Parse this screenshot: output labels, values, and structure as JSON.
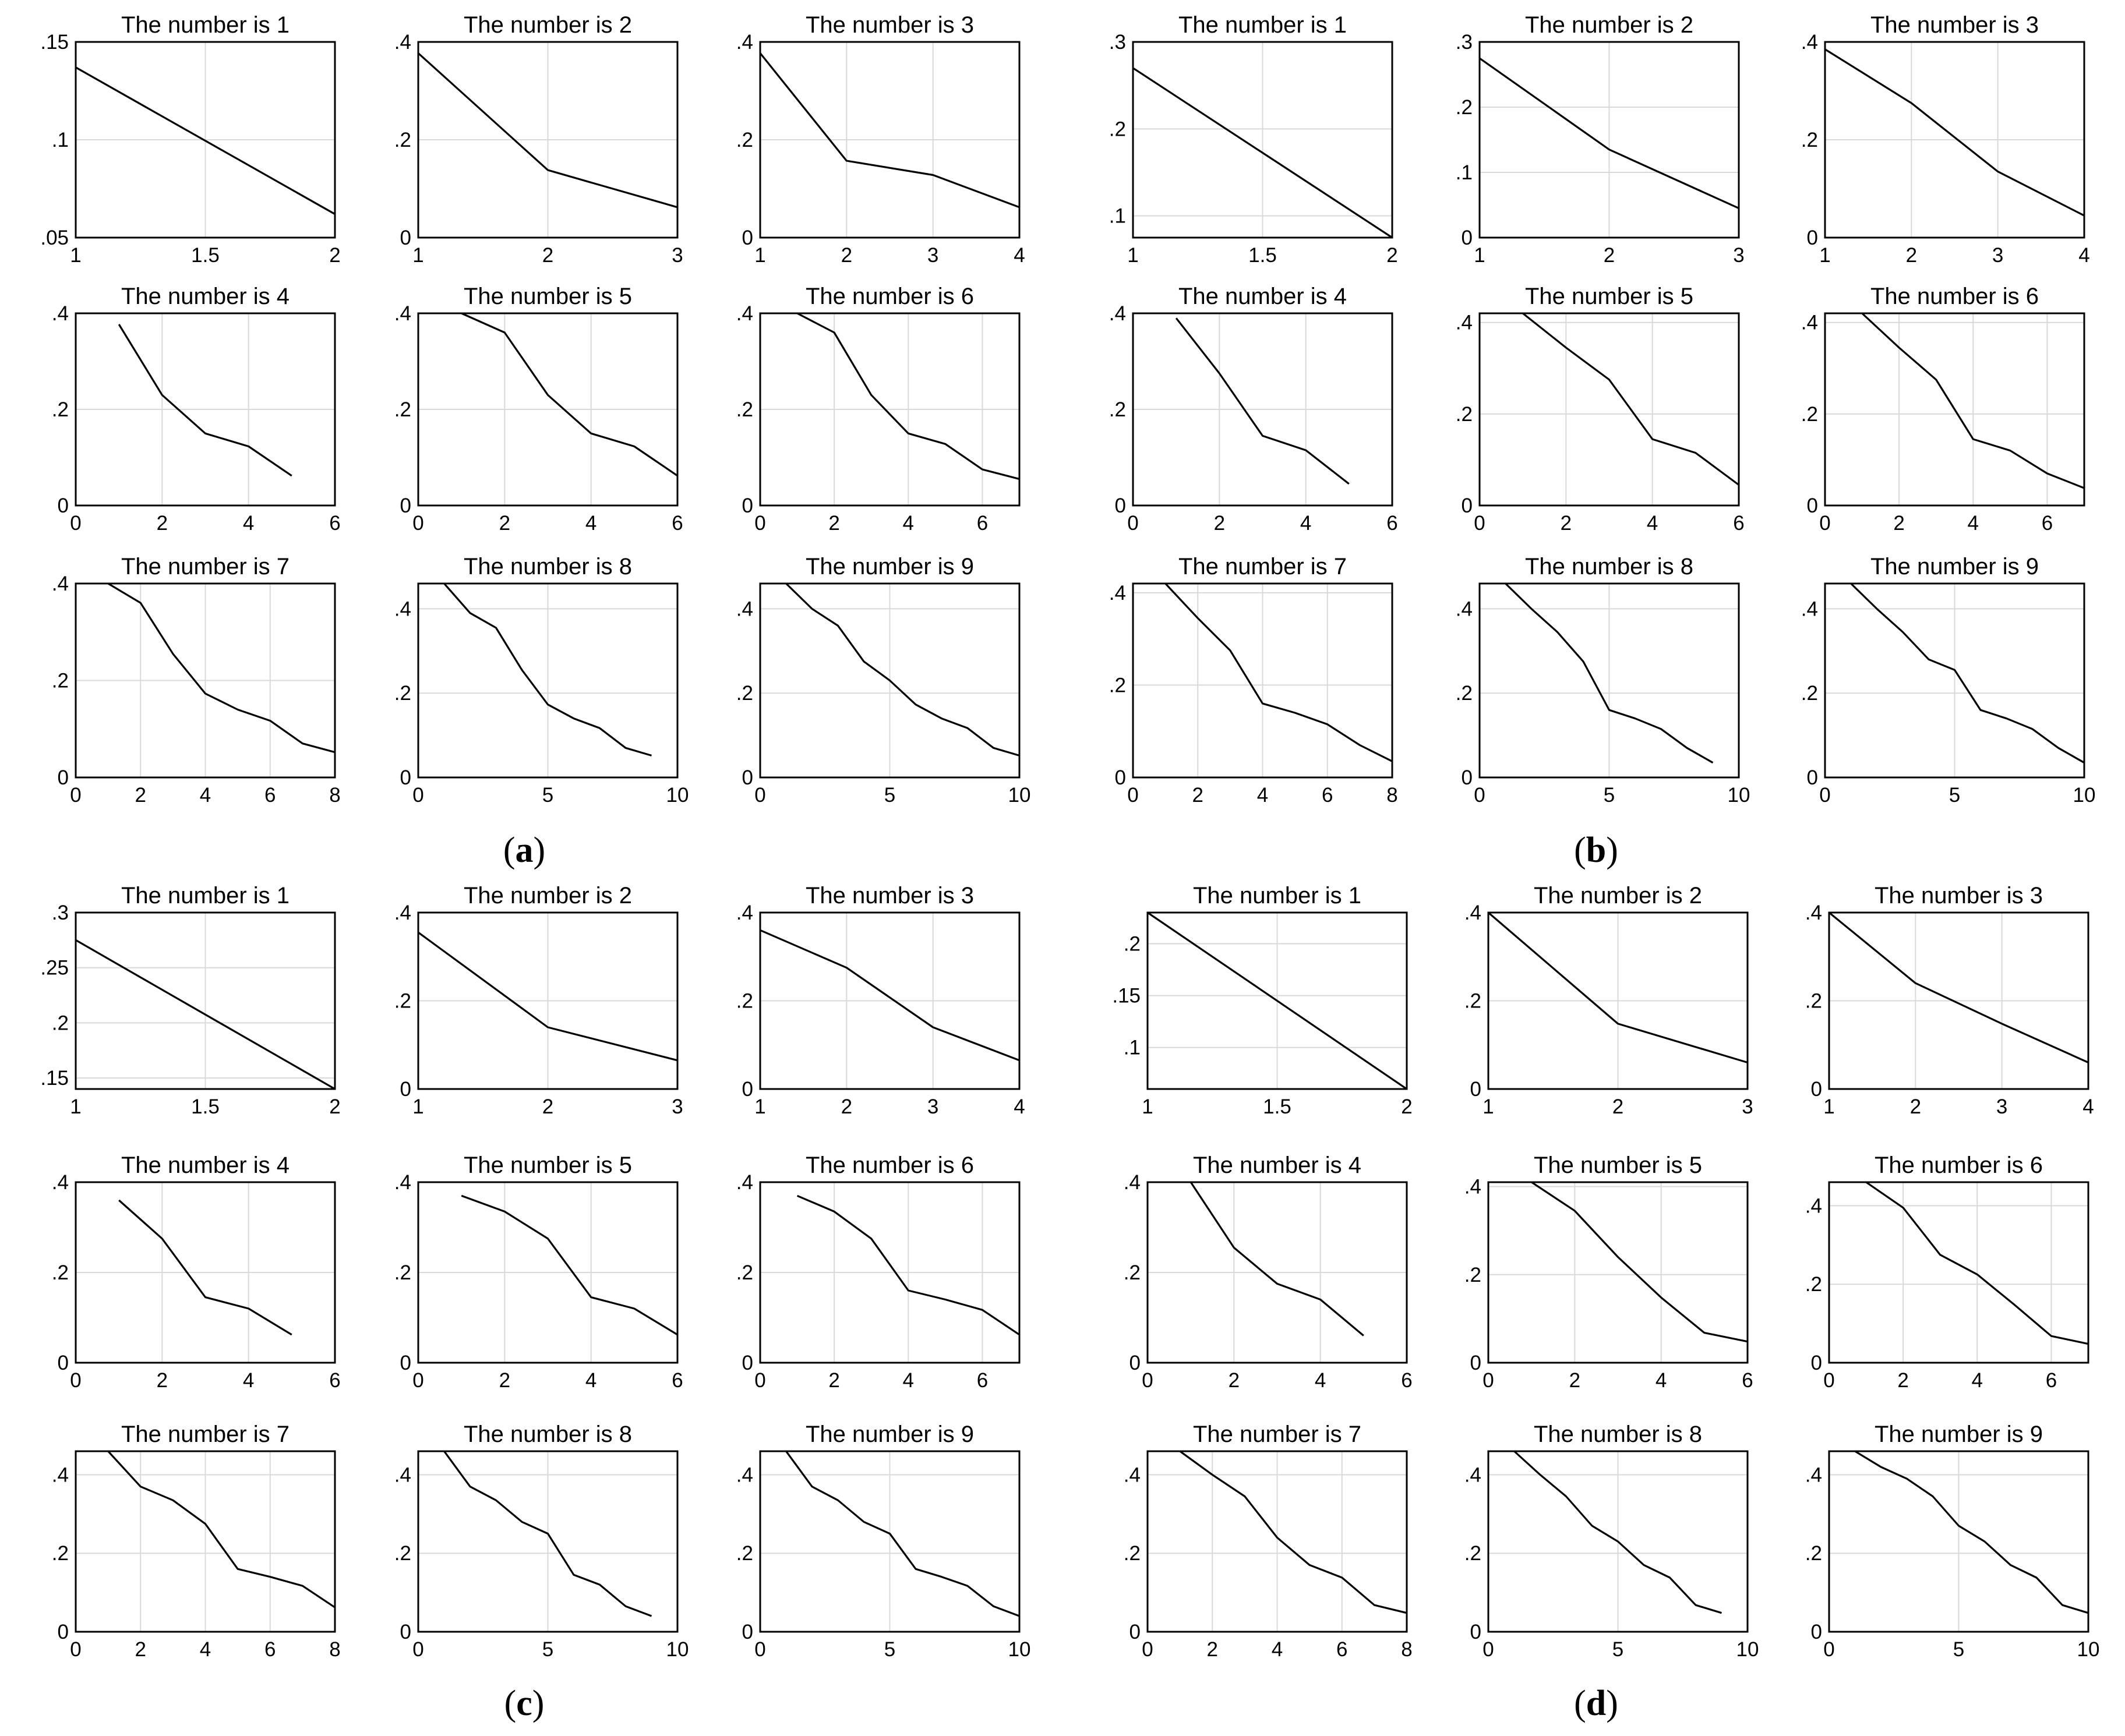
{
  "panels": [
    {
      "label": "a",
      "title_prefix": "The number is "
    },
    {
      "label": "b",
      "title_prefix": "The number is "
    },
    {
      "label": "c",
      "title_prefix": "The number is "
    },
    {
      "label": "d",
      "title_prefix": "The number is "
    }
  ],
  "chart_data": [
    {
      "type": "line",
      "panel": "a",
      "n": 1,
      "title": "The number is 1",
      "xlim": [
        1,
        2
      ],
      "ylim": [
        0.05,
        0.15
      ],
      "xticks": [
        1,
        1.5,
        2
      ],
      "yticks": [
        0.05,
        0.1,
        0.15
      ],
      "x": [
        1,
        2
      ],
      "y": [
        0.137,
        0.062
      ]
    },
    {
      "type": "line",
      "panel": "a",
      "n": 2,
      "title": "The number is 2",
      "xlim": [
        1,
        3
      ],
      "ylim": [
        0,
        0.4
      ],
      "xticks": [
        1,
        2,
        3
      ],
      "yticks": [
        0,
        0.2,
        0.4
      ],
      "x": [
        1,
        2,
        3
      ],
      "y": [
        0.377,
        0.138,
        0.062
      ]
    },
    {
      "type": "line",
      "panel": "a",
      "n": 3,
      "title": "The number is 3",
      "xlim": [
        1,
        4
      ],
      "ylim": [
        0,
        0.4
      ],
      "xticks": [
        1,
        2,
        3,
        4
      ],
      "yticks": [
        0,
        0.2,
        0.4
      ],
      "x": [
        1,
        2,
        3,
        4
      ],
      "y": [
        0.377,
        0.157,
        0.128,
        0.062
      ]
    },
    {
      "type": "line",
      "panel": "a",
      "n": 4,
      "title": "The number is 4",
      "xlim": [
        0,
        6
      ],
      "ylim": [
        0,
        0.4
      ],
      "xticks": [
        0,
        2,
        4,
        6
      ],
      "yticks": [
        0,
        0.2,
        0.4
      ],
      "x": [
        1,
        2,
        3,
        4,
        5
      ],
      "y": [
        0.377,
        0.23,
        0.15,
        0.123,
        0.062
      ]
    },
    {
      "type": "line",
      "panel": "a",
      "n": 5,
      "title": "The number is 5",
      "xlim": [
        0,
        6
      ],
      "ylim": [
        0,
        0.4
      ],
      "xticks": [
        0,
        2,
        4,
        6
      ],
      "yticks": [
        0,
        0.2,
        0.4
      ],
      "x": [
        1,
        2,
        3,
        4,
        5,
        6
      ],
      "y": [
        0.4,
        0.36,
        0.23,
        0.15,
        0.123,
        0.062
      ]
    },
    {
      "type": "line",
      "panel": "a",
      "n": 6,
      "title": "The number is 6",
      "xlim": [
        0,
        7
      ],
      "ylim": [
        0,
        0.4
      ],
      "xticks": [
        0,
        2,
        4,
        6
      ],
      "yticks": [
        0,
        0.2,
        0.4
      ],
      "x": [
        1,
        2,
        3,
        4,
        5,
        6,
        7
      ],
      "y": [
        0.4,
        0.36,
        0.23,
        0.15,
        0.128,
        0.075,
        0.055
      ]
    },
    {
      "type": "line",
      "panel": "a",
      "n": 7,
      "title": "The number is 7",
      "xlim": [
        0,
        8
      ],
      "ylim": [
        0,
        0.4
      ],
      "xticks": [
        0,
        2,
        4,
        6,
        8
      ],
      "yticks": [
        0,
        0.2,
        0.4
      ],
      "x": [
        1,
        2,
        3,
        4,
        5,
        6,
        7,
        8
      ],
      "y": [
        0.4,
        0.36,
        0.255,
        0.173,
        0.14,
        0.117,
        0.07,
        0.052
      ]
    },
    {
      "type": "line",
      "panel": "a",
      "n": 8,
      "title": "The number is 8",
      "xlim": [
        0,
        10
      ],
      "ylim": [
        0,
        0.46
      ],
      "xticks": [
        0,
        5,
        10
      ],
      "yticks": [
        0,
        0.2,
        0.4
      ],
      "x": [
        1,
        2,
        3,
        4,
        5,
        6,
        7,
        8,
        9
      ],
      "y": [
        0.46,
        0.39,
        0.355,
        0.255,
        0.173,
        0.14,
        0.117,
        0.07,
        0.052
      ]
    },
    {
      "type": "line",
      "panel": "a",
      "n": 9,
      "title": "The number is 9",
      "xlim": [
        0,
        10
      ],
      "ylim": [
        0,
        0.46
      ],
      "xticks": [
        0,
        5,
        10
      ],
      "yticks": [
        0,
        0.2,
        0.4
      ],
      "x": [
        1,
        2,
        3,
        4,
        5,
        6,
        7,
        8,
        9,
        10
      ],
      "y": [
        0.46,
        0.4,
        0.36,
        0.275,
        0.23,
        0.173,
        0.14,
        0.117,
        0.07,
        0.052
      ]
    },
    {
      "type": "line",
      "panel": "b",
      "n": 1,
      "title": "The number is 1",
      "xlim": [
        1,
        2
      ],
      "ylim": [
        0.075,
        0.3
      ],
      "xticks": [
        1,
        1.5,
        2
      ],
      "yticks": [
        0.1,
        0.2,
        0.3
      ],
      "x": [
        1,
        2
      ],
      "y": [
        0.27,
        0.075
      ]
    },
    {
      "type": "line",
      "panel": "b",
      "n": 2,
      "title": "The number is 2",
      "xlim": [
        1,
        3
      ],
      "ylim": [
        0,
        0.3
      ],
      "xticks": [
        1,
        2,
        3
      ],
      "yticks": [
        0,
        0.1,
        0.2,
        0.3
      ],
      "x": [
        1,
        2,
        3
      ],
      "y": [
        0.275,
        0.135,
        0.045
      ]
    },
    {
      "type": "line",
      "panel": "b",
      "n": 3,
      "title": "The number is 3",
      "xlim": [
        1,
        4
      ],
      "ylim": [
        0,
        0.4
      ],
      "xticks": [
        1,
        2,
        3,
        4
      ],
      "yticks": [
        0,
        0.2,
        0.4
      ],
      "x": [
        1,
        2,
        3,
        4
      ],
      "y": [
        0.385,
        0.275,
        0.135,
        0.045
      ]
    },
    {
      "type": "line",
      "panel": "b",
      "n": 4,
      "title": "The number is 4",
      "xlim": [
        0,
        6
      ],
      "ylim": [
        0,
        0.4
      ],
      "xticks": [
        0,
        2,
        4,
        6
      ],
      "yticks": [
        0,
        0.2,
        0.4
      ],
      "x": [
        1,
        2,
        3,
        4,
        5
      ],
      "y": [
        0.39,
        0.275,
        0.145,
        0.115,
        0.045
      ]
    },
    {
      "type": "line",
      "panel": "b",
      "n": 5,
      "title": "The number is 5",
      "xlim": [
        0,
        6
      ],
      "ylim": [
        0,
        0.42
      ],
      "xticks": [
        0,
        2,
        4,
        6
      ],
      "yticks": [
        0,
        0.2,
        0.4
      ],
      "x": [
        1,
        2,
        3,
        4,
        5,
        6
      ],
      "y": [
        0.42,
        0.345,
        0.275,
        0.145,
        0.115,
        0.045
      ]
    },
    {
      "type": "line",
      "panel": "b",
      "n": 6,
      "title": "The number is 6",
      "xlim": [
        0,
        7
      ],
      "ylim": [
        0,
        0.42
      ],
      "xticks": [
        0,
        2,
        4,
        6
      ],
      "yticks": [
        0,
        0.2,
        0.4
      ],
      "x": [
        1,
        2,
        3,
        4,
        5,
        6,
        7
      ],
      "y": [
        0.42,
        0.345,
        0.275,
        0.145,
        0.12,
        0.07,
        0.038
      ]
    },
    {
      "type": "line",
      "panel": "b",
      "n": 7,
      "title": "The number is 7",
      "xlim": [
        0,
        8
      ],
      "ylim": [
        0,
        0.42
      ],
      "xticks": [
        0,
        2,
        4,
        6,
        8
      ],
      "yticks": [
        0,
        0.2,
        0.4
      ],
      "x": [
        1,
        2,
        3,
        4,
        5,
        6,
        7,
        8
      ],
      "y": [
        0.42,
        0.345,
        0.275,
        0.16,
        0.14,
        0.115,
        0.07,
        0.035
      ]
    },
    {
      "type": "line",
      "panel": "b",
      "n": 8,
      "title": "The number is 8",
      "xlim": [
        0,
        10
      ],
      "ylim": [
        0,
        0.46
      ],
      "xticks": [
        0,
        5,
        10
      ],
      "yticks": [
        0,
        0.2,
        0.4
      ],
      "x": [
        1,
        2,
        3,
        4,
        5,
        6,
        7,
        8,
        9
      ],
      "y": [
        0.46,
        0.4,
        0.345,
        0.275,
        0.16,
        0.14,
        0.115,
        0.07,
        0.035
      ]
    },
    {
      "type": "line",
      "panel": "b",
      "n": 9,
      "title": "The number is 9",
      "xlim": [
        0,
        10
      ],
      "ylim": [
        0,
        0.46
      ],
      "xticks": [
        0,
        5,
        10
      ],
      "yticks": [
        0,
        0.2,
        0.4
      ],
      "x": [
        1,
        2,
        3,
        4,
        5,
        6,
        7,
        8,
        9,
        10
      ],
      "y": [
        0.46,
        0.4,
        0.345,
        0.28,
        0.255,
        0.16,
        0.14,
        0.115,
        0.07,
        0.035
      ]
    },
    {
      "type": "line",
      "panel": "c",
      "n": 1,
      "title": "The number is 1",
      "xlim": [
        1,
        2
      ],
      "ylim": [
        0.14,
        0.3
      ],
      "xticks": [
        1,
        1.5,
        2
      ],
      "yticks": [
        0.15,
        0.2,
        0.25,
        0.3
      ],
      "x": [
        1,
        2
      ],
      "y": [
        0.275,
        0.14
      ]
    },
    {
      "type": "line",
      "panel": "c",
      "n": 2,
      "title": "The number is 2",
      "xlim": [
        1,
        3
      ],
      "ylim": [
        0,
        0.4
      ],
      "xticks": [
        1,
        2,
        3
      ],
      "yticks": [
        0,
        0.2,
        0.4
      ],
      "x": [
        1,
        2,
        3
      ],
      "y": [
        0.355,
        0.14,
        0.065
      ]
    },
    {
      "type": "line",
      "panel": "c",
      "n": 3,
      "title": "The number is 3",
      "xlim": [
        1,
        4
      ],
      "ylim": [
        0,
        0.4
      ],
      "xticks": [
        1,
        2,
        3,
        4
      ],
      "yticks": [
        0,
        0.2,
        0.4
      ],
      "x": [
        1,
        2,
        3,
        4
      ],
      "y": [
        0.36,
        0.275,
        0.14,
        0.065
      ]
    },
    {
      "type": "line",
      "panel": "c",
      "n": 4,
      "title": "The number is 4",
      "xlim": [
        0,
        6
      ],
      "ylim": [
        0,
        0.4
      ],
      "xticks": [
        0,
        2,
        4,
        6
      ],
      "yticks": [
        0,
        0.2,
        0.4
      ],
      "x": [
        1,
        2,
        3,
        4,
        5
      ],
      "y": [
        0.36,
        0.275,
        0.145,
        0.12,
        0.062
      ]
    },
    {
      "type": "line",
      "panel": "c",
      "n": 5,
      "title": "The number is 5",
      "xlim": [
        0,
        6
      ],
      "ylim": [
        0,
        0.4
      ],
      "xticks": [
        0,
        2,
        4,
        6
      ],
      "yticks": [
        0,
        0.2,
        0.4
      ],
      "x": [
        1,
        2,
        3,
        4,
        5,
        6
      ],
      "y": [
        0.37,
        0.335,
        0.275,
        0.145,
        0.12,
        0.062
      ]
    },
    {
      "type": "line",
      "panel": "c",
      "n": 6,
      "title": "The number is 6",
      "xlim": [
        0,
        7
      ],
      "ylim": [
        0,
        0.4
      ],
      "xticks": [
        0,
        2,
        4,
        6
      ],
      "yticks": [
        0,
        0.2,
        0.4
      ],
      "x": [
        1,
        2,
        3,
        4,
        5,
        6,
        7
      ],
      "y": [
        0.37,
        0.335,
        0.275,
        0.16,
        0.14,
        0.117,
        0.062
      ]
    },
    {
      "type": "line",
      "panel": "c",
      "n": 7,
      "title": "The number is 7",
      "xlim": [
        0,
        8
      ],
      "ylim": [
        0,
        0.46
      ],
      "xticks": [
        0,
        2,
        4,
        6,
        8
      ],
      "yticks": [
        0,
        0.2,
        0.4
      ],
      "x": [
        1,
        2,
        3,
        4,
        5,
        6,
        7,
        8
      ],
      "y": [
        0.46,
        0.37,
        0.335,
        0.275,
        0.16,
        0.14,
        0.117,
        0.062
      ]
    },
    {
      "type": "line",
      "panel": "c",
      "n": 8,
      "title": "The number is 8",
      "xlim": [
        0,
        10
      ],
      "ylim": [
        0,
        0.46
      ],
      "xticks": [
        0,
        5,
        10
      ],
      "yticks": [
        0,
        0.2,
        0.4
      ],
      "x": [
        1,
        2,
        3,
        4,
        5,
        6,
        7,
        8,
        9
      ],
      "y": [
        0.46,
        0.37,
        0.335,
        0.28,
        0.25,
        0.145,
        0.12,
        0.065,
        0.04
      ]
    },
    {
      "type": "line",
      "panel": "c",
      "n": 9,
      "title": "The number is 9",
      "xlim": [
        0,
        10
      ],
      "ylim": [
        0,
        0.46
      ],
      "xticks": [
        0,
        5,
        10
      ],
      "yticks": [
        0,
        0.2,
        0.4
      ],
      "x": [
        1,
        2,
        3,
        4,
        5,
        6,
        7,
        8,
        9,
        10
      ],
      "y": [
        0.46,
        0.37,
        0.335,
        0.28,
        0.25,
        0.16,
        0.14,
        0.117,
        0.065,
        0.04
      ]
    },
    {
      "type": "line",
      "panel": "d",
      "n": 1,
      "title": "The number is 1",
      "xlim": [
        1,
        2
      ],
      "ylim": [
        0.06,
        0.23
      ],
      "xticks": [
        1,
        1.5,
        2
      ],
      "yticks": [
        0.1,
        0.15,
        0.2
      ],
      "x": [
        1,
        2
      ],
      "y": [
        0.23,
        0.06
      ]
    },
    {
      "type": "line",
      "panel": "d",
      "n": 2,
      "title": "The number is 2",
      "xlim": [
        1,
        3
      ],
      "ylim": [
        0,
        0.4
      ],
      "xticks": [
        1,
        2,
        3
      ],
      "yticks": [
        0,
        0.2,
        0.4
      ],
      "x": [
        1,
        2,
        3
      ],
      "y": [
        0.4,
        0.148,
        0.06
      ]
    },
    {
      "type": "line",
      "panel": "d",
      "n": 3,
      "title": "The number is 3",
      "xlim": [
        1,
        4
      ],
      "ylim": [
        0,
        0.4
      ],
      "xticks": [
        1,
        2,
        3,
        4
      ],
      "yticks": [
        0,
        0.2,
        0.4
      ],
      "x": [
        1,
        2,
        3,
        4
      ],
      "y": [
        0.4,
        0.24,
        0.148,
        0.06
      ]
    },
    {
      "type": "line",
      "panel": "d",
      "n": 4,
      "title": "The number is 4",
      "xlim": [
        0,
        6
      ],
      "ylim": [
        0,
        0.4
      ],
      "xticks": [
        0,
        2,
        4,
        6
      ],
      "yticks": [
        0,
        0.2,
        0.4
      ],
      "x": [
        1,
        2,
        3,
        4,
        5
      ],
      "y": [
        0.4,
        0.255,
        0.175,
        0.14,
        0.06
      ]
    },
    {
      "type": "line",
      "panel": "d",
      "n": 5,
      "title": "The number is 5",
      "xlim": [
        0,
        6
      ],
      "ylim": [
        0,
        0.41
      ],
      "xticks": [
        0,
        2,
        4,
        6
      ],
      "yticks": [
        0,
        0.2,
        0.4
      ],
      "x": [
        1,
        2,
        3,
        4,
        5,
        6
      ],
      "y": [
        0.41,
        0.345,
        0.24,
        0.148,
        0.068,
        0.048
      ]
    },
    {
      "type": "line",
      "panel": "d",
      "n": 6,
      "title": "The number is 6",
      "xlim": [
        0,
        7
      ],
      "ylim": [
        0,
        0.46
      ],
      "xticks": [
        0,
        2,
        4,
        6
      ],
      "yticks": [
        0,
        0.2,
        0.4
      ],
      "x": [
        1,
        2,
        3,
        4,
        5,
        6,
        7
      ],
      "y": [
        0.46,
        0.395,
        0.275,
        0.225,
        0.148,
        0.068,
        0.048
      ]
    },
    {
      "type": "line",
      "panel": "d",
      "n": 7,
      "title": "The number is 7",
      "xlim": [
        0,
        8
      ],
      "ylim": [
        0,
        0.46
      ],
      "xticks": [
        0,
        2,
        4,
        6,
        8
      ],
      "yticks": [
        0,
        0.2,
        0.4
      ],
      "x": [
        1,
        2,
        3,
        4,
        5,
        6,
        7,
        8
      ],
      "y": [
        0.46,
        0.4,
        0.345,
        0.24,
        0.17,
        0.138,
        0.068,
        0.048
      ]
    },
    {
      "type": "line",
      "panel": "d",
      "n": 8,
      "title": "The number is 8",
      "xlim": [
        0,
        10
      ],
      "ylim": [
        0,
        0.46
      ],
      "xticks": [
        0,
        5,
        10
      ],
      "yticks": [
        0,
        0.2,
        0.4
      ],
      "x": [
        1,
        2,
        3,
        4,
        5,
        6,
        7,
        8,
        9
      ],
      "y": [
        0.46,
        0.4,
        0.345,
        0.27,
        0.23,
        0.17,
        0.138,
        0.068,
        0.048
      ]
    },
    {
      "type": "line",
      "panel": "d",
      "n": 9,
      "title": "The number is 9",
      "xlim": [
        0,
        10
      ],
      "ylim": [
        0,
        0.46
      ],
      "xticks": [
        0,
        5,
        10
      ],
      "yticks": [
        0,
        0.2,
        0.4
      ],
      "x": [
        1,
        2,
        3,
        4,
        5,
        6,
        7,
        8,
        9,
        10
      ],
      "y": [
        0.46,
        0.42,
        0.39,
        0.345,
        0.27,
        0.23,
        0.17,
        0.138,
        0.068,
        0.048
      ]
    }
  ]
}
